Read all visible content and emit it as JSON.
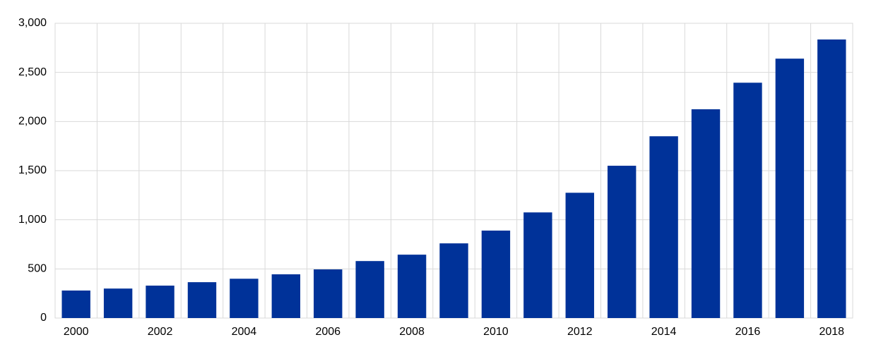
{
  "chart_data": {
    "type": "bar",
    "categories": [
      "2000",
      null,
      "2002",
      null,
      "2004",
      null,
      "2006",
      null,
      "2008",
      null,
      "2010",
      null,
      "2012",
      null,
      "2014",
      null,
      "2016",
      null,
      "2018"
    ],
    "values": [
      280,
      300,
      330,
      365,
      400,
      445,
      495,
      580,
      645,
      760,
      890,
      1075,
      1275,
      1550,
      1850,
      2125,
      2395,
      2640,
      2835
    ],
    "color": "#003299",
    "ylim": [
      0,
      3000
    ],
    "yticks": [
      0,
      500,
      {
        "value": 1000,
        "label": "1,000"
      },
      {
        "value": 1500,
        "label": "1,500"
      },
      {
        "value": 2000,
        "label": "2,000"
      },
      {
        "value": 2500,
        "label": "2,500"
      },
      {
        "value": 3000,
        "label": "3,000"
      }
    ],
    "grid": true
  }
}
